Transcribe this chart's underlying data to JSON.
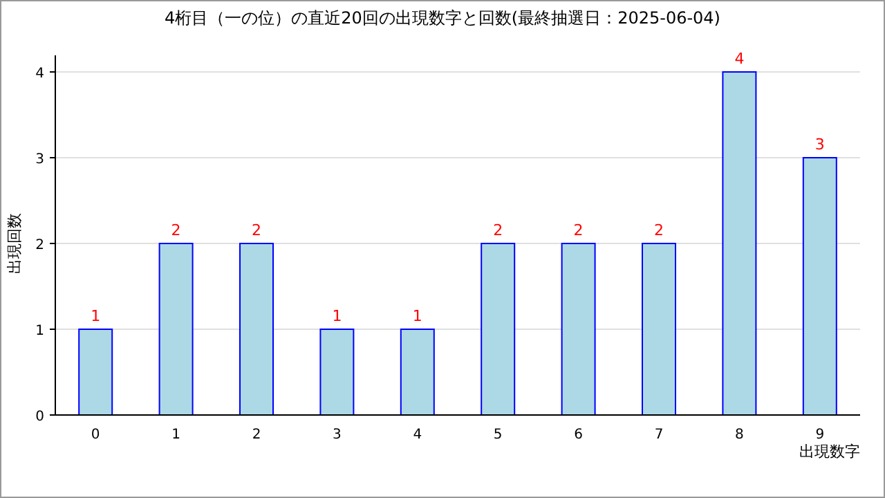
{
  "chart_data": {
    "type": "bar",
    "title": "4桁目（一の位）の直近20回の出現数字と回数(最終抽選日：2025-06-04)",
    "xlabel": "出現数字",
    "ylabel": "出現回数",
    "categories": [
      "0",
      "1",
      "2",
      "3",
      "4",
      "5",
      "6",
      "7",
      "8",
      "9"
    ],
    "values": [
      1,
      2,
      2,
      1,
      1,
      2,
      2,
      2,
      4,
      3
    ],
    "color": "#add8e6",
    "ylim": [
      0,
      4
    ],
    "yticks": [
      0,
      1,
      2,
      3,
      4
    ],
    "grid": "y",
    "data_labels": true
  }
}
